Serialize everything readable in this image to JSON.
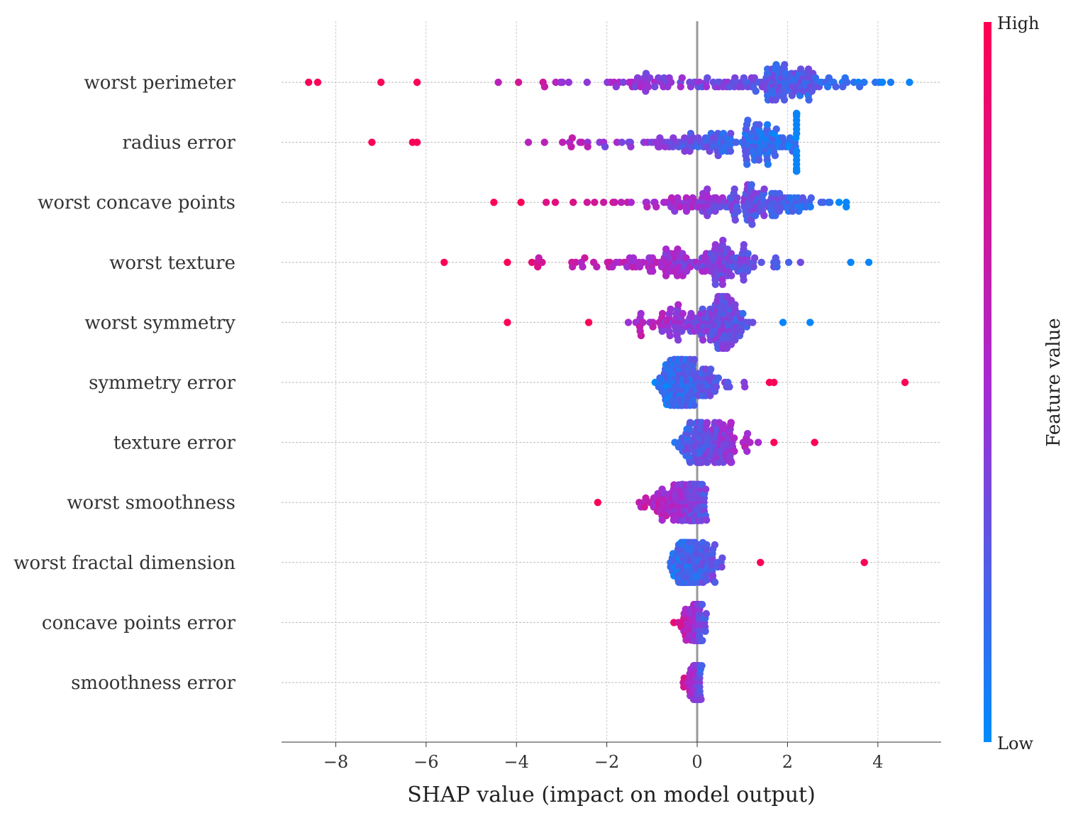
{
  "chart_data": {
    "type": "scatter",
    "subtype": "shap-beeswarm",
    "xlabel": "SHAP value (impact on model output)",
    "xlim": [
      -9.2,
      5.4
    ],
    "xticks": [
      -8,
      -6,
      -4,
      -2,
      0,
      2,
      4
    ],
    "xtick_labels": [
      "−8",
      "−6",
      "−4",
      "−2",
      "0",
      "2",
      "4"
    ],
    "grid": true,
    "zero_line": true,
    "colorbar": {
      "title": "Feature value",
      "high_label": "High",
      "low_label": "Low",
      "high_color": "#ff0051",
      "mid_color": "#a82ad1",
      "low_color": "#008bfb"
    },
    "features": [
      {
        "name": "worst perimeter",
        "min": -8.6,
        "max": 4.7,
        "extremes": [
          -8.6,
          -8.4,
          -7.0,
          -6.2,
          4.1,
          4.7
        ],
        "peak": 1.5,
        "spread": 2.4,
        "count": 190,
        "max_height": 0.5,
        "direction": -1
      },
      {
        "name": "radius error",
        "min": -7.2,
        "max": 2.2,
        "extremes": [
          -7.2,
          -6.3,
          -6.2,
          2.2
        ],
        "peak": 1.0,
        "spread": 2.0,
        "count": 180,
        "max_height": 0.48,
        "direction": -1
      },
      {
        "name": "worst concave points",
        "min": -4.5,
        "max": 3.3,
        "extremes": [
          -4.5,
          -3.9,
          3.3,
          3.3
        ],
        "peak": 1.1,
        "spread": 1.9,
        "count": 170,
        "max_height": 0.45,
        "direction": -1
      },
      {
        "name": "worst texture",
        "min": -5.6,
        "max": 3.8,
        "extremes": [
          -5.6,
          -4.2,
          3.4,
          3.8
        ],
        "peak": 0.3,
        "spread": 1.7,
        "count": 170,
        "max_height": 0.38,
        "direction": -1
      },
      {
        "name": "worst symmetry",
        "min": -4.2,
        "max": 2.5,
        "extremes": [
          -4.2,
          -2.4,
          1.9,
          2.5
        ],
        "peak": 0.4,
        "spread": 0.9,
        "count": 170,
        "max_height": 0.43,
        "direction": -1
      },
      {
        "name": "symmetry error",
        "min": -1.0,
        "max": 4.6,
        "extremes": [
          1.6,
          1.7,
          4.6
        ],
        "peak": -0.3,
        "spread": 0.55,
        "count": 170,
        "max_height": 0.38,
        "direction": 1
      },
      {
        "name": "texture error",
        "min": -0.8,
        "max": 2.6,
        "extremes": [
          1.7,
          2.6
        ],
        "peak": 0.1,
        "spread": 0.55,
        "count": 160,
        "max_height": 0.33,
        "direction": 1
      },
      {
        "name": "worst smoothness",
        "min": -2.2,
        "max": 1.1,
        "extremes": [
          -2.2
        ],
        "peak": -0.2,
        "spread": 0.5,
        "count": 160,
        "max_height": 0.3,
        "direction": -1
      },
      {
        "name": "worst fractal dimension",
        "min": -0.8,
        "max": 3.7,
        "extremes": [
          1.4,
          3.7
        ],
        "peak": -0.2,
        "spread": 0.45,
        "count": 150,
        "max_height": 0.33,
        "direction": 1
      },
      {
        "name": "concave points error",
        "min": -0.6,
        "max": 0.4,
        "extremes": [],
        "peak": 0.0,
        "spread": 0.22,
        "count": 90,
        "max_height": 0.3,
        "direction": -1
      },
      {
        "name": "smoothness error",
        "min": -0.45,
        "max": 0.25,
        "extremes": [],
        "peak": 0.0,
        "spread": 0.14,
        "count": 70,
        "max_height": 0.28,
        "direction": -1
      }
    ]
  }
}
